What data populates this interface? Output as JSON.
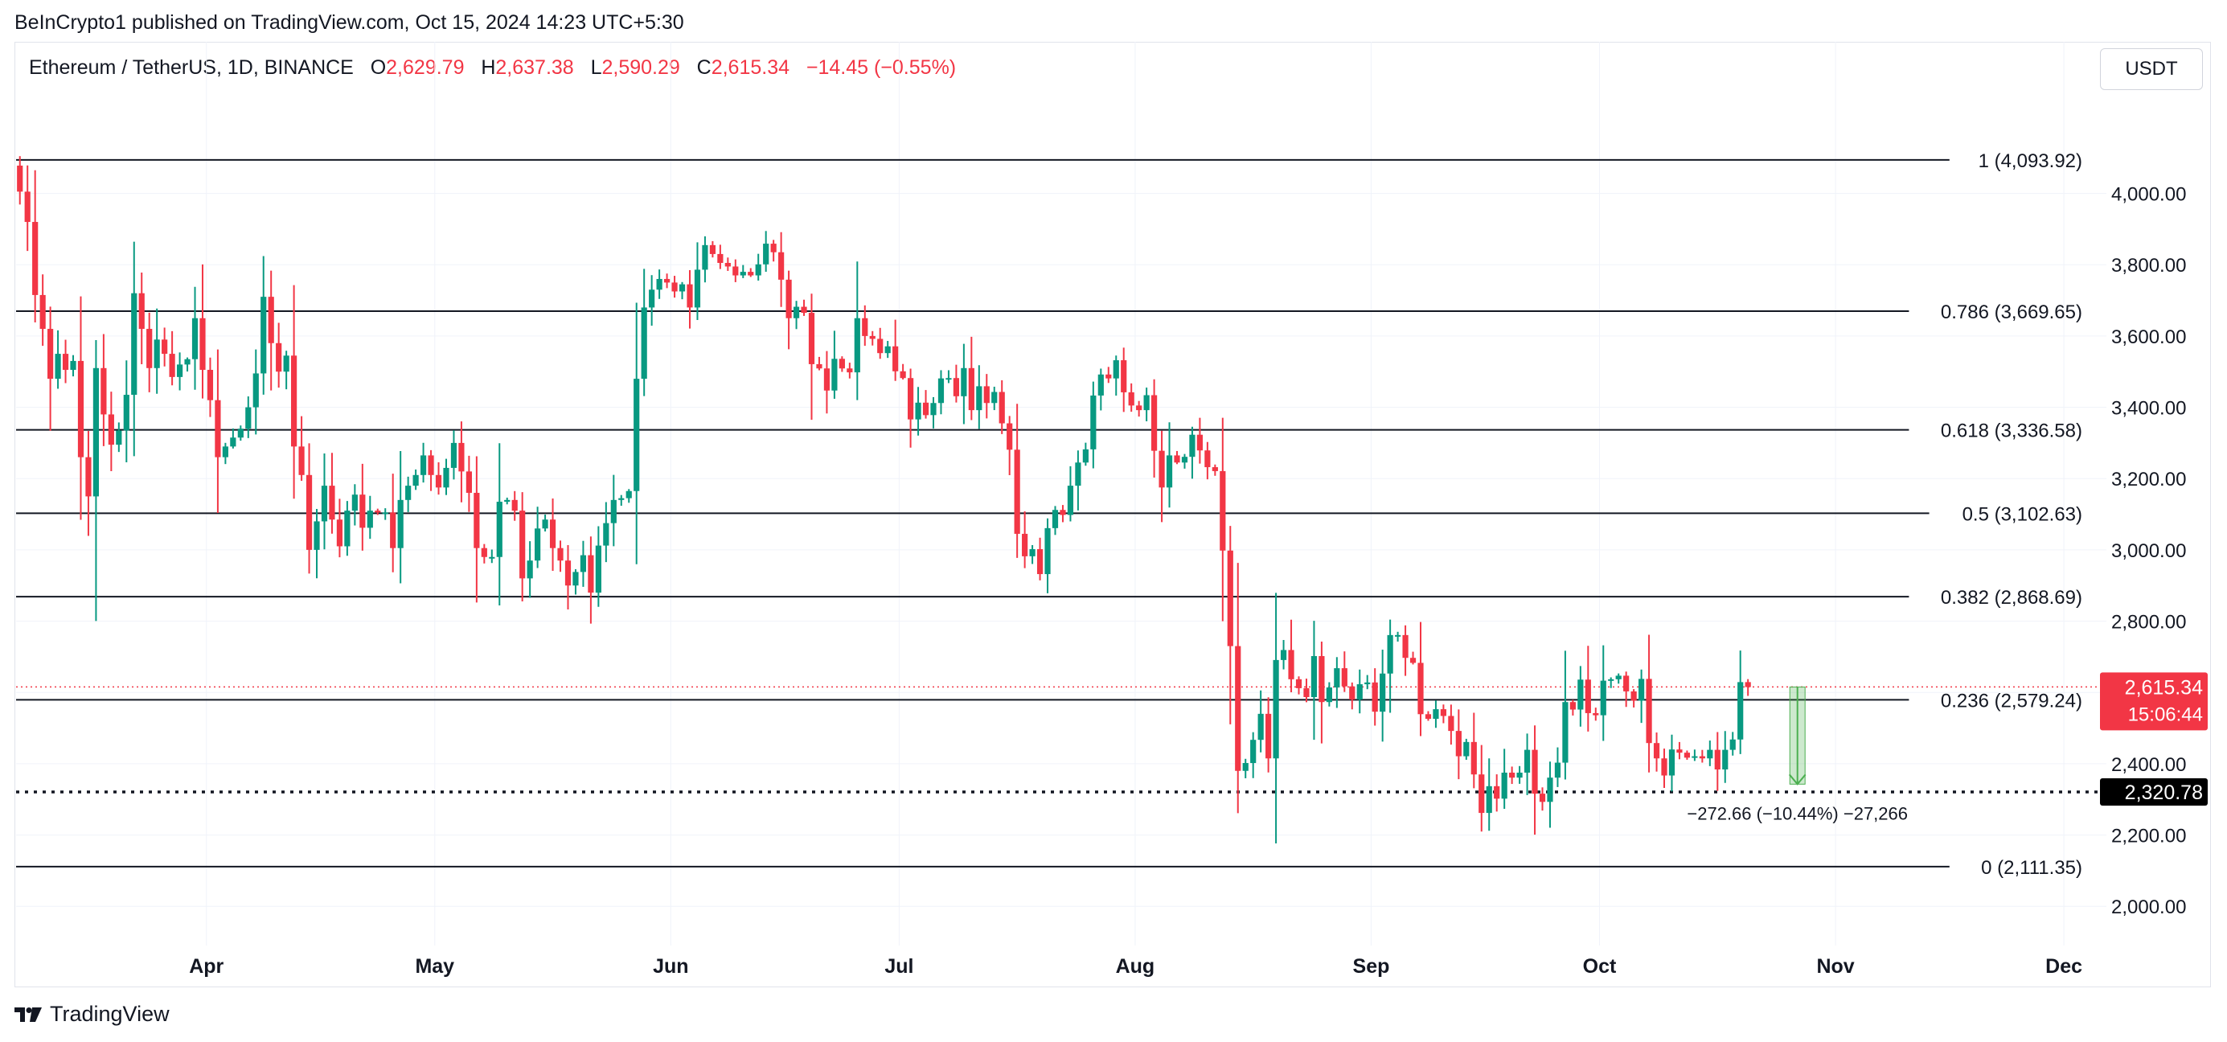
{
  "header": {
    "published_line": "BeInCrypto1 published on TradingView.com, Oct 15, 2024 14:23 UTC+5:30"
  },
  "legend": {
    "symbol": "Ethereum / TetherUS, 1D, BINANCE",
    "open_label": "O",
    "open": "2,629.79",
    "high_label": "H",
    "high": "2,637.38",
    "low_label": "L",
    "low": "2,590.29",
    "close_label": "C",
    "close": "2,615.34",
    "change": "−14.45 (−0.55%)"
  },
  "toolbar": {
    "currency_label": "USDT"
  },
  "footer": {
    "brand": "TradingView"
  },
  "colors": {
    "up": "#089981",
    "down": "#f23645",
    "grid": "#f0f3fa",
    "fib": "#131722",
    "measure": "#4caf50"
  },
  "chart_data": {
    "type": "candlestick",
    "title": "Ethereum / TetherUS, 1D, BINANCE",
    "ylim": [
      1890,
      4290
    ],
    "x_range": [
      "2024-03-07",
      "2024-12-05"
    ],
    "y_ticks": [
      "2,000.00",
      "2,200.00",
      "2,400.00",
      "2,600.00",
      "2,800.00",
      "3,000.00",
      "3,200.00",
      "3,400.00",
      "3,600.00",
      "3,800.00",
      "4,000.00"
    ],
    "x_ticks": [
      {
        "label": "Apr",
        "date": "2024-04-01"
      },
      {
        "label": "May",
        "date": "2024-05-01"
      },
      {
        "label": "Jun",
        "date": "2024-06-01"
      },
      {
        "label": "Jul",
        "date": "2024-07-01"
      },
      {
        "label": "Aug",
        "date": "2024-08-01"
      },
      {
        "label": "Sep",
        "date": "2024-09-01"
      },
      {
        "label": "Oct",
        "date": "2024-10-01"
      },
      {
        "label": "Nov",
        "date": "2024-11-01"
      },
      {
        "label": "Dec",
        "date": "2024-12-01"
      }
    ],
    "fib_levels": [
      {
        "label": "1 (4,093.92)",
        "value": 4093.92
      },
      {
        "label": "0.786 (3,669.65)",
        "value": 3669.65
      },
      {
        "label": "0.618 (3,336.58)",
        "value": 3336.58
      },
      {
        "label": "0.5 (3,102.63)",
        "value": 3102.63
      },
      {
        "label": "0.382 (2,868.69)",
        "value": 2868.69
      },
      {
        "label": "0.236 (2,579.24)",
        "value": 2579.24
      },
      {
        "label": "0 (2,111.35)",
        "value": 2111.35
      }
    ],
    "support_line": {
      "value": 2320.78,
      "label": "2,320.78"
    },
    "last_price": {
      "value": 2615.34,
      "label": "2,615.34",
      "countdown": "15:06:44"
    },
    "measure": {
      "start_date": "2024-10-26",
      "from": 2615.34,
      "to": 2342.68,
      "label": "−272.66 (−10.44%) −27,266"
    },
    "closes": [
      4005,
      3920,
      3715,
      3620,
      3480,
      3550,
      3505,
      3530,
      3260,
      3150,
      3510,
      3380,
      3295,
      3335,
      3435,
      3720,
      3620,
      3510,
      3590,
      3550,
      3485,
      3520,
      3535,
      3650,
      3505,
      3420,
      3260,
      3290,
      3315,
      3340,
      3400,
      3495,
      3710,
      3580,
      3500,
      3545,
      3290,
      3210,
      3000,
      3080,
      3180,
      3085,
      3010,
      3110,
      3155,
      3062,
      3110,
      3105,
      3105,
      3005,
      3140,
      3180,
      3210,
      3265,
      3210,
      3175,
      3230,
      3300,
      3220,
      3160,
      3005,
      2980,
      2980,
      3135,
      3140,
      3110,
      2920,
      2970,
      3060,
      3085,
      3005,
      2970,
      2900,
      2938,
      2985,
      2880,
      3012,
      3075,
      3140,
      3145,
      3165,
      3480,
      3680,
      3730,
      3760,
      3750,
      3725,
      3745,
      3680,
      3786,
      3855,
      3830,
      3805,
      3795,
      3770,
      3780,
      3770,
      3801,
      3859,
      3835,
      3758,
      3650,
      3682,
      3665,
      3521,
      3509,
      3447,
      3536,
      3509,
      3498,
      3650,
      3600,
      3592,
      3552,
      3571,
      3501,
      3482,
      3366,
      3413,
      3378,
      3412,
      3481,
      3482,
      3431,
      3510,
      3392,
      3459,
      3412,
      3443,
      3355,
      3281,
      3045,
      2982,
      3002,
      2932,
      3061,
      3112,
      3098,
      3180,
      3245,
      3282,
      3433,
      3492,
      3481,
      3532,
      3442,
      3405,
      3392,
      3434,
      3278,
      3175,
      3265,
      3245,
      3261,
      3323,
      3279,
      3232,
      3221,
      2998,
      2730,
      2380,
      2402,
      2467,
      2540,
      2415,
      2691,
      2719,
      2637,
      2612,
      2587,
      2702,
      2573,
      2614,
      2668,
      2617,
      2580,
      2623,
      2628,
      2546,
      2653,
      2761,
      2761,
      2697,
      2683,
      2539,
      2526,
      2553,
      2534,
      2492,
      2421,
      2461,
      2370,
      2262,
      2337,
      2302,
      2375,
      2361,
      2375,
      2439,
      2316,
      2293,
      2361,
      2403,
      2573,
      2552,
      2636,
      2542,
      2536,
      2633,
      2637,
      2647,
      2603,
      2577,
      2638,
      2458,
      2415,
      2367,
      2440,
      2431,
      2417,
      2421,
      2415,
      2439,
      2384,
      2439,
      2468,
      2629,
      2615
    ]
  }
}
